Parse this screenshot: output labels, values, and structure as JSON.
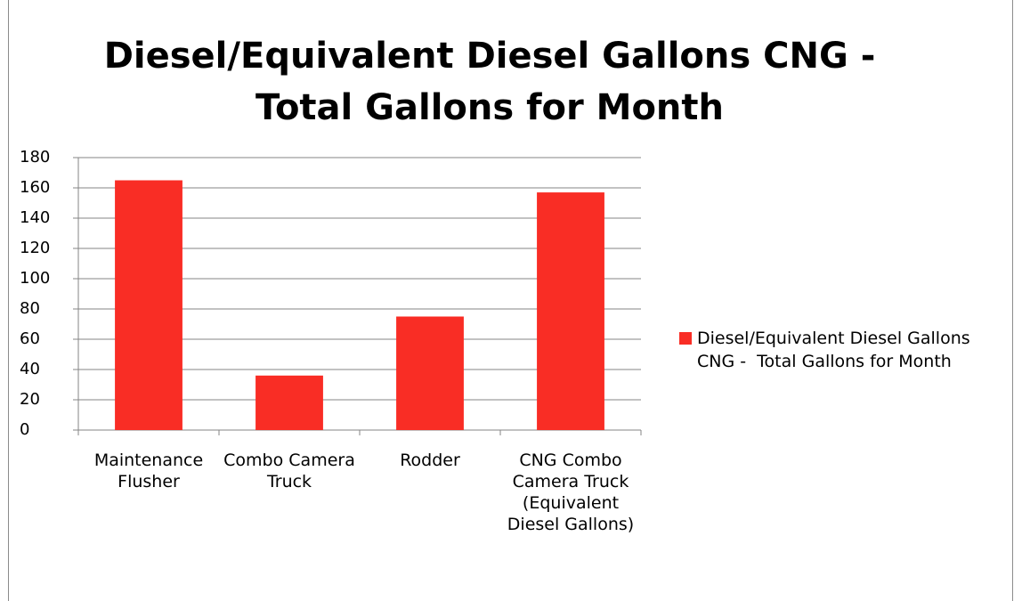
{
  "chart_data": {
    "type": "bar",
    "title": "Diesel/Equivalent Diesel Gallons CNG - Total Gallons for Month",
    "categories": [
      "Maintenance Flusher",
      "Combo Camera Truck",
      "Rodder",
      "CNG Combo Camera Truck (Equivalent Diesel Gallons)"
    ],
    "series": [
      {
        "name": "Diesel/Equivalent Diesel Gallons CNG -  Total Gallons for Month",
        "color": "#f92d25",
        "values": [
          165,
          36,
          75,
          157
        ]
      }
    ],
    "ylim": [
      0,
      180
    ],
    "yticks": [
      0,
      20,
      40,
      60,
      80,
      100,
      120,
      140,
      160,
      180
    ],
    "grid": true,
    "legend": "right"
  }
}
